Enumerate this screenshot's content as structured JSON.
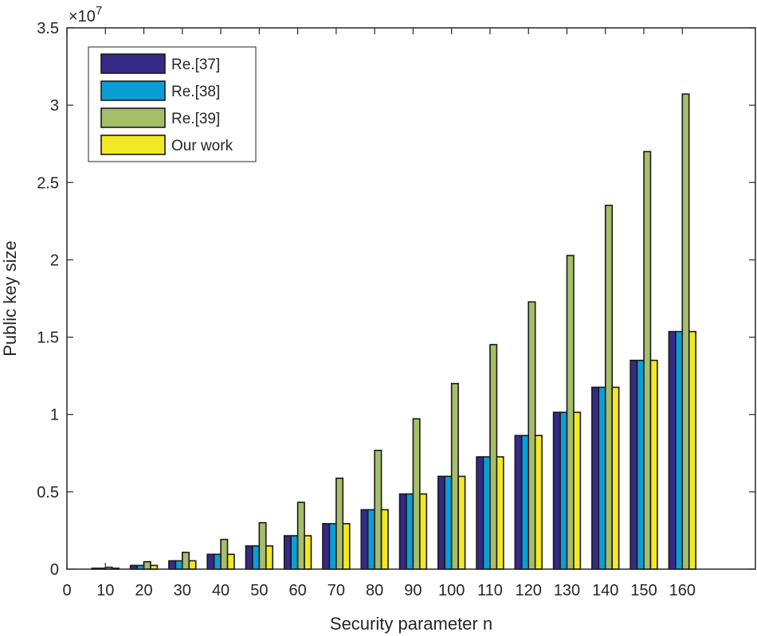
{
  "chart_data": {
    "type": "bar",
    "title": "",
    "xlabel": "Security parameter n",
    "ylabel": "Public key size",
    "y_exponent_label": "×10",
    "y_exponent": "7",
    "xlim": [
      0,
      179
    ],
    "ylim": [
      0,
      35000000
    ],
    "grid": false,
    "legend_position": "top-left",
    "x_ticks": [
      0,
      10,
      20,
      30,
      40,
      50,
      60,
      70,
      80,
      90,
      100,
      110,
      120,
      130,
      140,
      150,
      160
    ],
    "x_tick_labels": [
      "0",
      "10",
      "20",
      "30",
      "40",
      "50",
      "60",
      "70",
      "80",
      "90",
      "100",
      "110",
      "120",
      "130",
      "140",
      "150",
      "160"
    ],
    "y_ticks": [
      0,
      5000000,
      10000000,
      15000000,
      20000000,
      25000000,
      30000000,
      35000000
    ],
    "y_tick_labels": [
      "0",
      "0.5",
      "1",
      "1.5",
      "2",
      "2.5",
      "3",
      "3.5"
    ],
    "categories": [
      10,
      20,
      30,
      40,
      50,
      60,
      70,
      80,
      90,
      100,
      110,
      120,
      130,
      140,
      150,
      160
    ],
    "series": [
      {
        "name": "Re.[37]",
        "color": "#352a87",
        "values": [
          60000,
          240000,
          540000,
          960000,
          1500000,
          2160000,
          2940000,
          3840000,
          4860000,
          6000000,
          7260000,
          8640000,
          10140000,
          11760000,
          13500000,
          15360000
        ]
      },
      {
        "name": "Re.[38]",
        "color": "#0b9ed3",
        "values": [
          60000,
          240000,
          540000,
          960000,
          1500000,
          2160000,
          2940000,
          3840000,
          4860000,
          6000000,
          7260000,
          8640000,
          10140000,
          11760000,
          13500000,
          15360000
        ]
      },
      {
        "name": "Re.[39]",
        "color": "#a5be6a",
        "values": [
          120000,
          480000,
          1080000,
          1920000,
          3000000,
          4320000,
          5880000,
          7680000,
          9720000,
          12000000,
          14520000,
          17280000,
          20280000,
          23520000,
          27000000,
          30720000
        ]
      },
      {
        "name": "Our work",
        "color": "#f3e825",
        "values": [
          60000,
          240000,
          540000,
          960000,
          1500000,
          2160000,
          2940000,
          3840000,
          4860000,
          6000000,
          7260000,
          8640000,
          10140000,
          11760000,
          13500000,
          15360000
        ]
      }
    ]
  }
}
